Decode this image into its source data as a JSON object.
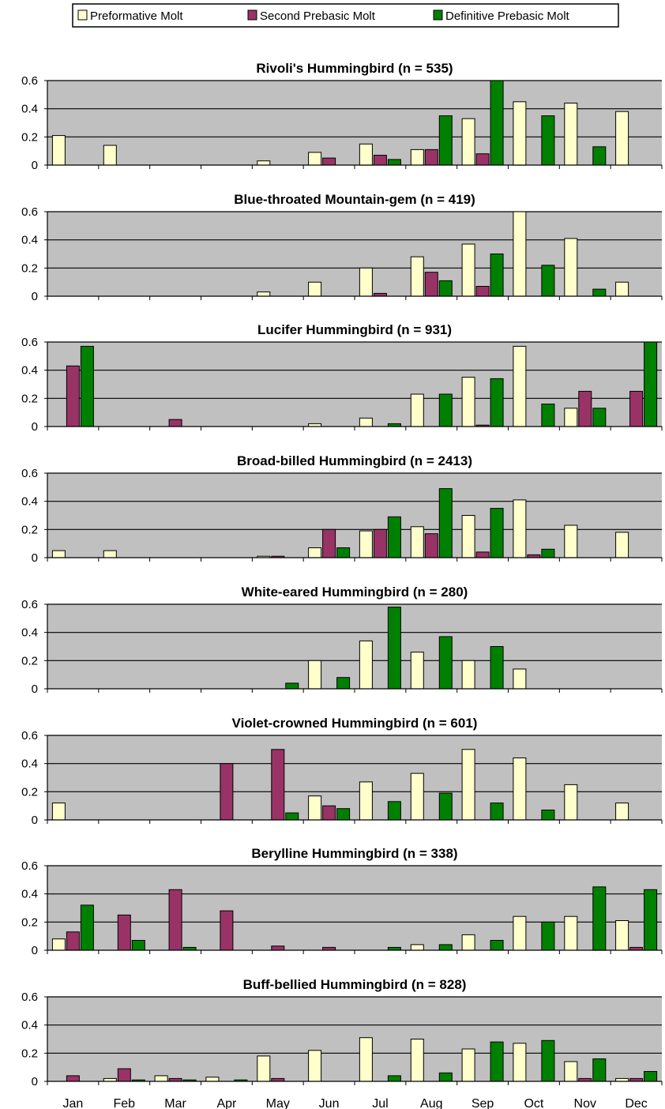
{
  "legend": {
    "items": [
      {
        "label": "Preformative Molt",
        "color": "#ffffcc"
      },
      {
        "label": "Second Prebasic Molt",
        "color": "#993366"
      },
      {
        "label": "Definitive Prebasic Molt",
        "color": "#008000"
      }
    ]
  },
  "colors": {
    "plot_area": "#c0c0c0",
    "gridline": "#000000",
    "bar_outline": "#000000"
  },
  "chart_data": [
    {
      "type": "bar",
      "title": "Rivoli's Hummingbird (n = 535)",
      "categories": [
        "Jan",
        "Feb",
        "Mar",
        "Apr",
        "May",
        "Jun",
        "Jul",
        "Aug",
        "Sep",
        "Oct",
        "Nov",
        "Dec"
      ],
      "ylim": [
        0,
        0.6
      ],
      "yticks": [
        "0",
        "0.2",
        "0.4",
        "0.6"
      ],
      "grid": true,
      "series": [
        {
          "name": "Preformative Molt",
          "values": [
            0.21,
            0.14,
            0,
            0,
            0.03,
            0.09,
            0.15,
            0.11,
            0.33,
            0.45,
            0.44,
            0.38
          ]
        },
        {
          "name": "Second Prebasic Molt",
          "values": [
            0,
            0,
            0,
            0,
            0,
            0.05,
            0.07,
            0.11,
            0.08,
            0,
            0,
            0
          ]
        },
        {
          "name": "Definitive Prebasic Molt",
          "values": [
            0,
            0,
            0,
            0,
            0,
            0,
            0.04,
            0.35,
            0.6,
            0.35,
            0.13,
            0
          ]
        }
      ]
    },
    {
      "type": "bar",
      "title": "Blue-throated Mountain-gem (n = 419)",
      "categories": [
        "Jan",
        "Feb",
        "Mar",
        "Apr",
        "May",
        "Jun",
        "Jul",
        "Aug",
        "Sep",
        "Oct",
        "Nov",
        "Dec"
      ],
      "ylim": [
        0,
        0.6
      ],
      "yticks": [
        "0",
        "0.2",
        "0.4",
        "0.6"
      ],
      "grid": true,
      "series": [
        {
          "name": "Preformative Molt",
          "values": [
            0,
            0,
            0,
            0,
            0.03,
            0.1,
            0.2,
            0.28,
            0.37,
            0.6,
            0.41,
            0.1
          ]
        },
        {
          "name": "Second Prebasic Molt",
          "values": [
            0,
            0,
            0,
            0,
            0,
            0,
            0.02,
            0.17,
            0.07,
            0,
            0,
            0
          ]
        },
        {
          "name": "Definitive Prebasic Molt",
          "values": [
            0,
            0,
            0,
            0,
            0,
            0,
            0,
            0.11,
            0.3,
            0.22,
            0.05,
            0
          ]
        }
      ]
    },
    {
      "type": "bar",
      "title": "Lucifer Hummingbird (n = 931)",
      "categories": [
        "Jan",
        "Feb",
        "Mar",
        "Apr",
        "May",
        "Jun",
        "Jul",
        "Aug",
        "Sep",
        "Oct",
        "Nov",
        "Dec"
      ],
      "ylim": [
        0,
        0.6
      ],
      "yticks": [
        "0",
        "0.2",
        "0.4",
        "0.6"
      ],
      "grid": true,
      "series": [
        {
          "name": "Preformative Molt",
          "values": [
            0,
            0,
            0,
            0,
            0,
            0.02,
            0.06,
            0.23,
            0.35,
            0.57,
            0.13,
            0
          ]
        },
        {
          "name": "Second Prebasic Molt",
          "values": [
            0.43,
            0,
            0.05,
            0,
            0,
            0,
            0,
            0,
            0.01,
            0,
            0.25,
            0.25
          ]
        },
        {
          "name": "Definitive Prebasic Molt",
          "values": [
            0.57,
            0,
            0,
            0,
            0,
            0,
            0.02,
            0.23,
            0.34,
            0.16,
            0.13,
            0.6
          ]
        }
      ]
    },
    {
      "type": "bar",
      "title": "Broad-billed Hummingbird (n = 2413)",
      "categories": [
        "Jan",
        "Feb",
        "Mar",
        "Apr",
        "May",
        "Jun",
        "Jul",
        "Aug",
        "Sep",
        "Oct",
        "Nov",
        "Dec"
      ],
      "ylim": [
        0,
        0.6
      ],
      "yticks": [
        "0",
        "0.2",
        "0.4",
        "0.6"
      ],
      "grid": true,
      "series": [
        {
          "name": "Preformative Molt",
          "values": [
            0.05,
            0.05,
            0,
            0,
            0.01,
            0.07,
            0.19,
            0.22,
            0.3,
            0.41,
            0.23,
            0.18
          ]
        },
        {
          "name": "Second Prebasic Molt",
          "values": [
            0,
            0,
            0,
            0,
            0.01,
            0.2,
            0.2,
            0.17,
            0.04,
            0.02,
            0,
            0
          ]
        },
        {
          "name": "Definitive Prebasic Molt",
          "values": [
            0,
            0,
            0,
            0,
            0,
            0.07,
            0.29,
            0.49,
            0.35,
            0.06,
            0,
            0
          ]
        }
      ]
    },
    {
      "type": "bar",
      "title": "White-eared Hummingbird (n = 280)",
      "categories": [
        "Jan",
        "Feb",
        "Mar",
        "Apr",
        "May",
        "Jun",
        "Jul",
        "Aug",
        "Sep",
        "Oct",
        "Nov",
        "Dec"
      ],
      "ylim": [
        0,
        0.6
      ],
      "yticks": [
        "0",
        "0.2",
        "0.4",
        "0.6"
      ],
      "grid": true,
      "series": [
        {
          "name": "Preformative Molt",
          "values": [
            0,
            0,
            0,
            0,
            0,
            0.2,
            0.34,
            0.26,
            0.2,
            0.14,
            0,
            0
          ]
        },
        {
          "name": "Second Prebasic Molt",
          "values": [
            0,
            0,
            0,
            0,
            0,
            0,
            0,
            0,
            0,
            0,
            0,
            0
          ]
        },
        {
          "name": "Definitive Prebasic Molt",
          "values": [
            0,
            0,
            0,
            0,
            0.04,
            0.08,
            0.58,
            0.37,
            0.3,
            0,
            0,
            0
          ]
        }
      ]
    },
    {
      "type": "bar",
      "title": "Violet-crowned Hummingbird (n = 601)",
      "categories": [
        "Jan",
        "Feb",
        "Mar",
        "Apr",
        "May",
        "Jun",
        "Jul",
        "Aug",
        "Sep",
        "Oct",
        "Nov",
        "Dec"
      ],
      "ylim": [
        0,
        0.6
      ],
      "yticks": [
        "0",
        "0.2",
        "0.4",
        "0.6"
      ],
      "grid": true,
      "series": [
        {
          "name": "Preformative Molt",
          "values": [
            0.12,
            0,
            0,
            0,
            0,
            0.17,
            0.27,
            0.33,
            0.5,
            0.44,
            0.25,
            0.12
          ]
        },
        {
          "name": "Second Prebasic Molt",
          "values": [
            0,
            0,
            0,
            0.4,
            0.5,
            0.1,
            0,
            0,
            0,
            0,
            0,
            0
          ]
        },
        {
          "name": "Definitive Prebasic Molt",
          "values": [
            0,
            0,
            0,
            0,
            0.05,
            0.08,
            0.13,
            0.19,
            0.12,
            0.07,
            0,
            0
          ]
        }
      ]
    },
    {
      "type": "bar",
      "title": "Berylline Hummingbird (n = 338)",
      "categories": [
        "Jan",
        "Feb",
        "Mar",
        "Apr",
        "May",
        "Jun",
        "Jul",
        "Aug",
        "Sep",
        "Oct",
        "Nov",
        "Dec"
      ],
      "ylim": [
        0,
        0.6
      ],
      "yticks": [
        "0",
        "0.2",
        "0.4",
        "0.6"
      ],
      "grid": true,
      "series": [
        {
          "name": "Preformative Molt",
          "values": [
            0.08,
            0,
            0,
            0,
            0,
            0,
            0,
            0.04,
            0.11,
            0.24,
            0.24,
            0.21
          ]
        },
        {
          "name": "Second Prebasic Molt",
          "values": [
            0.13,
            0.25,
            0.43,
            0.28,
            0.03,
            0.02,
            0,
            0,
            0,
            0,
            0,
            0.02
          ]
        },
        {
          "name": "Definitive Prebasic Molt",
          "values": [
            0.32,
            0.07,
            0.02,
            0,
            0,
            0,
            0.02,
            0.04,
            0.07,
            0.2,
            0.45,
            0.43
          ]
        }
      ]
    },
    {
      "type": "bar",
      "title": "Buff-bellied Hummingbird (n = 828)",
      "categories": [
        "Jan",
        "Feb",
        "Mar",
        "Apr",
        "May",
        "Jun",
        "Jul",
        "Aug",
        "Sep",
        "Oct",
        "Nov",
        "Dec"
      ],
      "ylim": [
        0,
        0.6
      ],
      "yticks": [
        "0",
        "0.2",
        "0.4",
        "0.6"
      ],
      "grid": true,
      "xticks_visible": true,
      "series": [
        {
          "name": "Preformative Molt",
          "values": [
            0,
            0.02,
            0.04,
            0.03,
            0.18,
            0.22,
            0.31,
            0.3,
            0.23,
            0.27,
            0.14,
            0.02
          ]
        },
        {
          "name": "Second Prebasic Molt",
          "values": [
            0.04,
            0.09,
            0.02,
            0,
            0.02,
            0,
            0,
            0,
            0,
            0,
            0.02,
            0.02
          ]
        },
        {
          "name": "Definitive Prebasic Molt",
          "values": [
            0,
            0.01,
            0.01,
            0.01,
            0,
            0,
            0.04,
            0.06,
            0.28,
            0.29,
            0.16,
            0.07
          ]
        }
      ]
    }
  ]
}
